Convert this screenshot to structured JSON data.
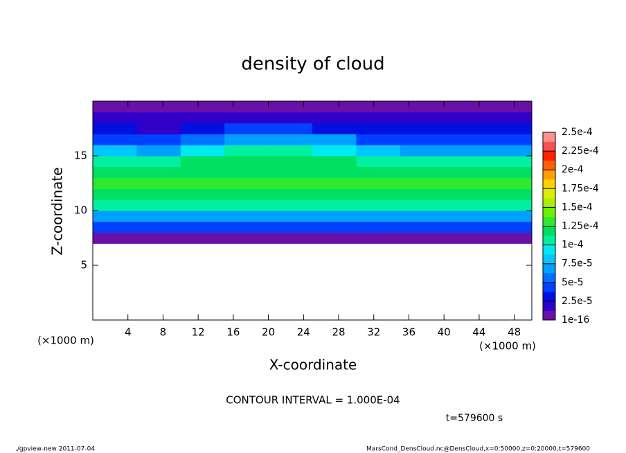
{
  "chart_data": {
    "type": "contour",
    "title": "density of cloud",
    "xlabel": "X-coordinate",
    "ylabel": "Z-coordinate",
    "x_unit_left": "(×1000 m)",
    "x_unit_right": "(×1000 m)",
    "contour_interval": "CONTOUR INTERVAL = 1.000E-04",
    "time_label": "t=579600 s",
    "footer_left": "./gpview-new  2011-07-04",
    "footer_right": "MarsCond_DensCloud.nc@DensCloud,x=0:50000,z=0:20000,t=579600",
    "xlim": [
      0,
      50
    ],
    "ylim": [
      0,
      20
    ],
    "xticks": [
      4,
      8,
      12,
      16,
      20,
      24,
      28,
      32,
      36,
      40,
      44,
      48
    ],
    "yticks": [
      5,
      10,
      15
    ],
    "x": [
      2.5,
      7.5,
      12.5,
      17.5,
      22.5,
      27.5,
      32.5,
      37.5,
      42.5,
      47.5
    ],
    "y": [
      0.5,
      1.5,
      2.5,
      3.5,
      4.5,
      5.5,
      6.5,
      7.5,
      8.5,
      9.5,
      10.5,
      11.5,
      12.5,
      13.5,
      14.5,
      15.5,
      16.5,
      17.5,
      18.5,
      19.5
    ],
    "z": [
      [
        null,
        null,
        null,
        null,
        null,
        null,
        null,
        null,
        null,
        null
      ],
      [
        null,
        null,
        null,
        null,
        null,
        null,
        null,
        null,
        null,
        null
      ],
      [
        null,
        null,
        null,
        null,
        null,
        null,
        null,
        null,
        null,
        null
      ],
      [
        null,
        null,
        null,
        null,
        null,
        null,
        null,
        null,
        null,
        null
      ],
      [
        null,
        null,
        null,
        null,
        null,
        null,
        null,
        null,
        null,
        null
      ],
      [
        null,
        null,
        null,
        null,
        null,
        null,
        null,
        null,
        null,
        null
      ],
      [
        null,
        null,
        null,
        null,
        null,
        null,
        null,
        null,
        null,
        null
      ],
      [
        1e-05,
        1e-05,
        1e-05,
        1e-05,
        1e-05,
        1e-05,
        1e-05,
        1e-05,
        1e-05,
        1e-05
      ],
      [
        4e-05,
        4e-05,
        4e-05,
        4e-05,
        4e-05,
        4e-05,
        4e-05,
        4e-05,
        4e-05,
        4e-05
      ],
      [
        7e-05,
        7e-05,
        7e-05,
        7e-05,
        7e-05,
        7e-05,
        7e-05,
        7e-05,
        7e-05,
        7e-05
      ],
      [
        0.000105,
        0.000105,
        0.000105,
        0.000105,
        0.000105,
        0.000105,
        0.000105,
        0.000105,
        0.000105,
        0.000105
      ],
      [
        0.00012,
        0.00012,
        0.00012,
        0.00012,
        0.00012,
        0.00012,
        0.00012,
        0.00012,
        0.00012,
        0.00012
      ],
      [
        0.00013,
        0.00013,
        0.00013,
        0.00013,
        0.00013,
        0.00013,
        0.00013,
        0.00013,
        0.00013,
        0.00013
      ],
      [
        0.000125,
        0.000125,
        0.000125,
        0.000125,
        0.000125,
        0.000125,
        0.000125,
        0.00012,
        0.00012,
        0.00012
      ],
      [
        0.00011,
        0.00011,
        0.000115,
        0.00012,
        0.00012,
        0.00012,
        0.00011,
        0.000105,
        0.000105,
        0.000105
      ],
      [
        8e-05,
        7.5e-05,
        9e-05,
        0.000105,
        0.000105,
        0.0001,
        8e-05,
        7e-05,
        7e-05,
        7.5e-05
      ],
      [
        5e-05,
        4.5e-05,
        6e-05,
        7e-05,
        7e-05,
        6.5e-05,
        5e-05,
        4.5e-05,
        4.5e-05,
        5e-05
      ],
      [
        3e-05,
        2.5e-05,
        3e-05,
        4e-05,
        4e-05,
        3.5e-05,
        3e-05,
        3e-05,
        3e-05,
        3e-05
      ],
      [
        1.5e-05,
        1.5e-05,
        1.5e-05,
        2e-05,
        2e-05,
        1.5e-05,
        1.5e-05,
        2e-05,
        2e-05,
        2e-05
      ],
      [
        5e-06,
        5e-06,
        5e-06,
        5e-06,
        5e-06,
        5e-06,
        5e-06,
        5e-06,
        5e-06,
        5e-06
      ]
    ],
    "colors": [
      "#6a0fa8",
      "#3000c8",
      "#0010e0",
      "#0040ff",
      "#0070ff",
      "#00a0ff",
      "#00c8ff",
      "#00e8f0",
      "#00f0a0",
      "#00e060",
      "#30e830",
      "#70f000",
      "#a8f000",
      "#d8f000",
      "#ffd000",
      "#ffa000",
      "#ff6000",
      "#ff2000",
      "#ff5050",
      "#ff9090"
    ],
    "colorbar_ticks": [
      {
        "value": 1e-16,
        "label": "1e-16"
      },
      {
        "value": 2.5e-05,
        "label": "2.5e-5"
      },
      {
        "value": 5e-05,
        "label": "5e-5"
      },
      {
        "value": 7.5e-05,
        "label": "7.5e-5"
      },
      {
        "value": 0.0001,
        "label": "1e-4"
      },
      {
        "value": 0.000125,
        "label": "1.25e-4"
      },
      {
        "value": 0.00015,
        "label": "1.5e-4"
      },
      {
        "value": 0.000175,
        "label": "1.75e-4"
      },
      {
        "value": 0.0002,
        "label": "2e-4"
      },
      {
        "value": 0.000225,
        "label": "2.25e-4"
      },
      {
        "value": 0.00025,
        "label": "2.5e-4"
      }
    ]
  }
}
